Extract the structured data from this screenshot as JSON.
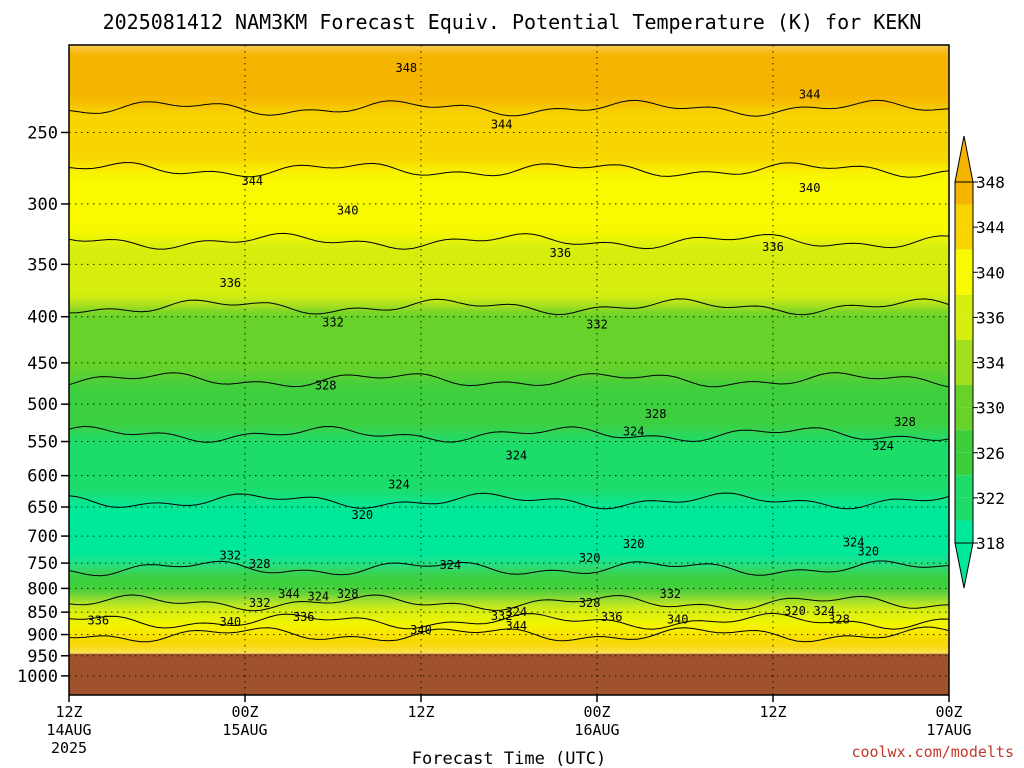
{
  "chart_data": {
    "type": "heatmap",
    "title": "2025081412 NAM3KM Forecast Equiv. Potential Temperature (K) for KEKN",
    "xlabel": "Forecast Time (UTC)",
    "ylabel": "",
    "y_axis": {
      "scale": "log",
      "reversed": true,
      "range": [
        200,
        1050
      ],
      "ticks": [
        250,
        300,
        350,
        400,
        450,
        500,
        550,
        600,
        650,
        700,
        750,
        800,
        850,
        900,
        950,
        1000
      ]
    },
    "x_axis": {
      "range_hours": [
        0,
        60
      ],
      "ticks": [
        {
          "hour": 0,
          "label": "12Z",
          "date": "14AUG",
          "year": "2025"
        },
        {
          "hour": 12,
          "label": "00Z",
          "date": "15AUG",
          "year": ""
        },
        {
          "hour": 24,
          "label": "12Z",
          "date": "",
          "year": ""
        },
        {
          "hour": 36,
          "label": "00Z",
          "date": "16AUG",
          "year": ""
        },
        {
          "hour": 48,
          "label": "12Z",
          "date": "",
          "year": ""
        },
        {
          "hour": 60,
          "label": "00Z",
          "date": "17AUG",
          "year": ""
        }
      ]
    },
    "grid": "dotted",
    "colorbar": {
      "levels": [
        318,
        322,
        326,
        330,
        334,
        336,
        340,
        344,
        348
      ],
      "labels": [
        "318",
        "322",
        "326",
        "330",
        "334",
        "336",
        "340",
        "344",
        "348"
      ],
      "colors": [
        "#00e89a",
        "#1fdc6a",
        "#3ccf3c",
        "#66d22a",
        "#a2e01e",
        "#d6ee0f",
        "#f9f900",
        "#f8d500",
        "#f5b400"
      ]
    },
    "bands": [
      {
        "value": 348,
        "p_top": 200,
        "p_bottom": 235
      },
      {
        "value": 344,
        "p_top": 235,
        "p_bottom": 275
      },
      {
        "value": 340,
        "p_top": 275,
        "p_bottom": 330
      },
      {
        "value": 336,
        "p_top": 330,
        "p_bottom": 390
      },
      {
        "value": 332,
        "p_top": 390,
        "p_bottom": 470
      },
      {
        "value": 328,
        "p_top": 470,
        "p_bottom": 540
      },
      {
        "value": 324,
        "p_top": 540,
        "p_bottom": 640
      },
      {
        "value": 320,
        "p_top": 640,
        "p_bottom": 760
      },
      {
        "value": 328,
        "p_top": 760,
        "p_bottom": 830
      },
      {
        "value": 336,
        "p_top": 830,
        "p_bottom": 870
      },
      {
        "value": 340,
        "p_top": 870,
        "p_bottom": 900
      },
      {
        "value": 344,
        "p_top": 900,
        "p_bottom": 945
      }
    ],
    "surface_pressure": 945,
    "contour_labels": [
      {
        "text": "348",
        "hour": 23,
        "p": 212
      },
      {
        "text": "344",
        "hour": 12.5,
        "p": 283
      },
      {
        "text": "344",
        "hour": 29.5,
        "p": 245
      },
      {
        "text": "344",
        "hour": 50.5,
        "p": 227
      },
      {
        "text": "340",
        "hour": 19,
        "p": 305
      },
      {
        "text": "340",
        "hour": 50.5,
        "p": 288
      },
      {
        "text": "336",
        "hour": 11,
        "p": 367
      },
      {
        "text": "336",
        "hour": 33.5,
        "p": 340
      },
      {
        "text": "336",
        "hour": 48,
        "p": 335
      },
      {
        "text": "332",
        "hour": 18,
        "p": 406
      },
      {
        "text": "332",
        "hour": 36,
        "p": 408
      },
      {
        "text": "328",
        "hour": 17.5,
        "p": 477
      },
      {
        "text": "328",
        "hour": 40,
        "p": 513
      },
      {
        "text": "328",
        "hour": 57,
        "p": 523
      },
      {
        "text": "324",
        "hour": 30.5,
        "p": 570
      },
      {
        "text": "324",
        "hour": 38.5,
        "p": 536
      },
      {
        "text": "324",
        "hour": 55.5,
        "p": 556
      },
      {
        "text": "324",
        "hour": 22.5,
        "p": 614
      },
      {
        "text": "320",
        "hour": 20,
        "p": 663
      },
      {
        "text": "320",
        "hour": 38.5,
        "p": 714
      },
      {
        "text": "320",
        "hour": 35.5,
        "p": 740
      },
      {
        "text": "320",
        "hour": 54.5,
        "p": 728
      },
      {
        "text": "324",
        "hour": 53.5,
        "p": 712
      },
      {
        "text": "332",
        "hour": 11,
        "p": 736
      },
      {
        "text": "328",
        "hour": 13,
        "p": 752
      },
      {
        "text": "324",
        "hour": 26,
        "p": 754
      },
      {
        "text": "328",
        "hour": 19,
        "p": 812
      },
      {
        "text": "344",
        "hour": 15,
        "p": 812
      },
      {
        "text": "324",
        "hour": 17,
        "p": 817
      },
      {
        "text": "332",
        "hour": 13,
        "p": 830
      },
      {
        "text": "336",
        "hour": 16,
        "p": 860
      },
      {
        "text": "332",
        "hour": 29.5,
        "p": 858
      },
      {
        "text": "324",
        "hour": 30.5,
        "p": 850
      },
      {
        "text": "332",
        "hour": 41,
        "p": 812
      },
      {
        "text": "328",
        "hour": 35.5,
        "p": 830
      },
      {
        "text": "336",
        "hour": 37,
        "p": 860
      },
      {
        "text": "340",
        "hour": 41.5,
        "p": 866
      },
      {
        "text": "320",
        "hour": 49.5,
        "p": 848
      },
      {
        "text": "324",
        "hour": 51.5,
        "p": 848
      },
      {
        "text": "328",
        "hour": 52.5,
        "p": 866
      },
      {
        "text": "336",
        "hour": 2,
        "p": 868
      },
      {
        "text": "340",
        "hour": 11,
        "p": 872
      },
      {
        "text": "340",
        "hour": 24,
        "p": 889
      },
      {
        "text": "344",
        "hour": 30.5,
        "p": 880
      }
    ]
  },
  "credit": "coolwx.com/modelts"
}
